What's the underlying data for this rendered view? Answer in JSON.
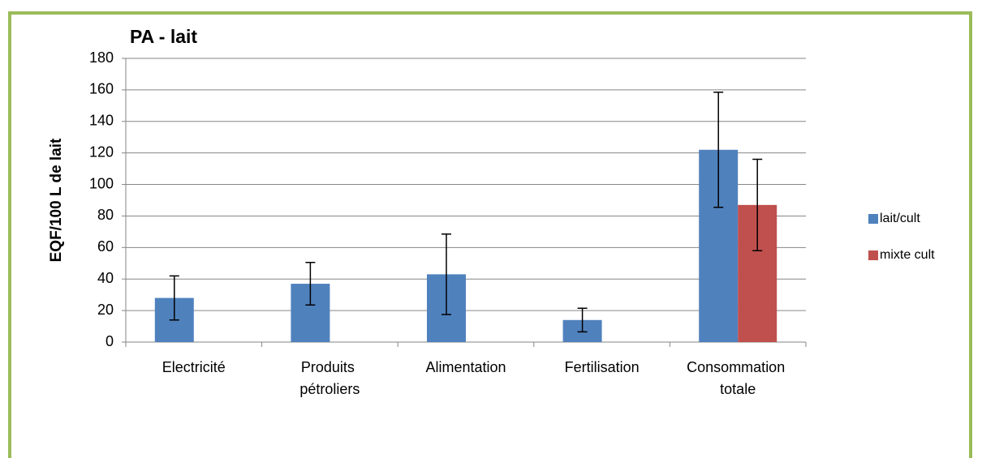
{
  "chart_data": {
    "type": "bar",
    "title": "PA - lait",
    "y_label": "EQF/100 L de lait",
    "categories": [
      "Electricité",
      "Produits pétroliers",
      "Alimentation",
      "Fertilisation",
      "Consommation totale"
    ],
    "series": [
      {
        "name": "lait/cult",
        "color": "#4f81bd",
        "values": [
          28,
          37,
          43,
          14,
          122
        ],
        "errors": [
          14,
          13.5,
          25.5,
          7.5,
          36.5
        ]
      },
      {
        "name": "mixte cult",
        "color": "#c0504d",
        "values": [
          null,
          null,
          null,
          null,
          87
        ],
        "errors": [
          null,
          null,
          null,
          null,
          29
        ]
      }
    ],
    "ylim": [
      0,
      180
    ],
    "yticks": [
      0,
      20,
      40,
      60,
      80,
      100,
      120,
      140,
      160,
      180
    ],
    "grid": true,
    "legend": "right"
  }
}
